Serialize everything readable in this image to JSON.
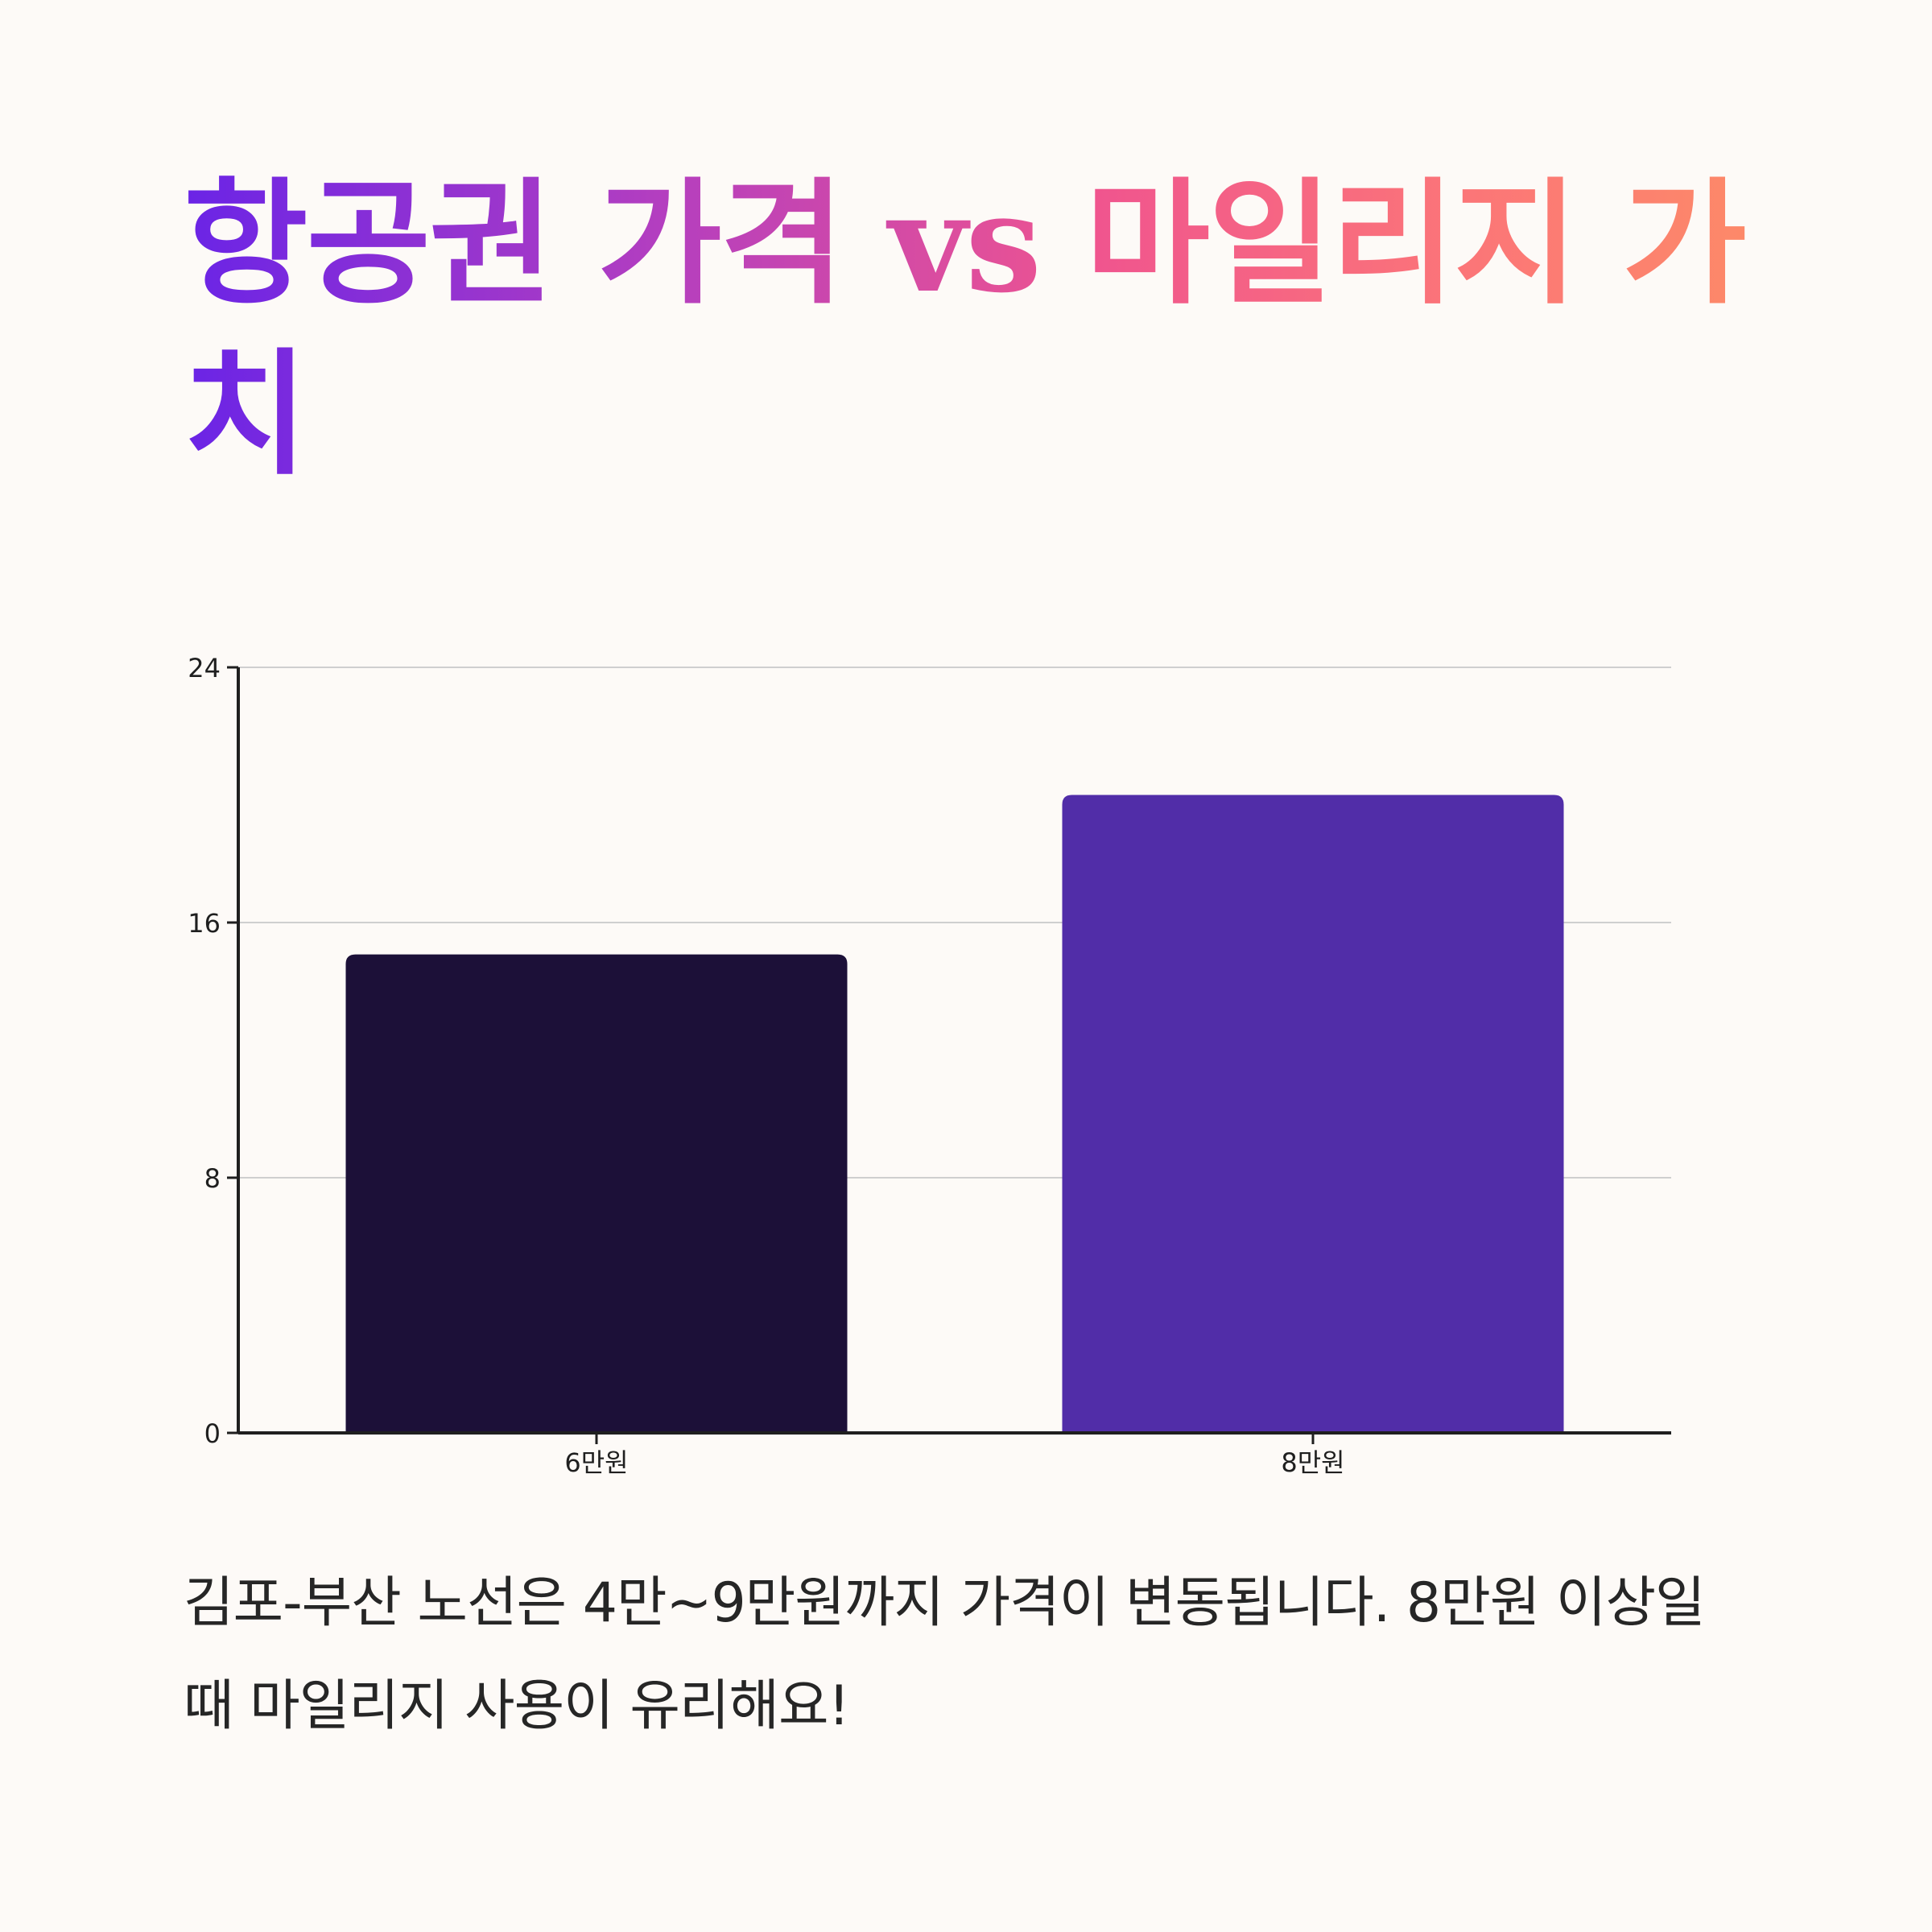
{
  "title": {
    "part1": "항공권 가격 ",
    "vs": "vs",
    "part2": " 마일리지 가치"
  },
  "chart_data": {
    "type": "bar",
    "categories": [
      "6만원",
      "8만원"
    ],
    "values": [
      15,
      20
    ],
    "ylim": [
      0,
      24
    ],
    "yticks": [
      0,
      8,
      16,
      24
    ],
    "grid": true,
    "colors": [
      "#1c1038",
      "#512da8"
    ],
    "xlabel": "",
    "ylabel": ""
  },
  "caption": "김포-부산 노선은 4만~9만원까지 가격이 변동됩니다. 8만원 이상일 때 마일리지 사용이 유리해요!"
}
